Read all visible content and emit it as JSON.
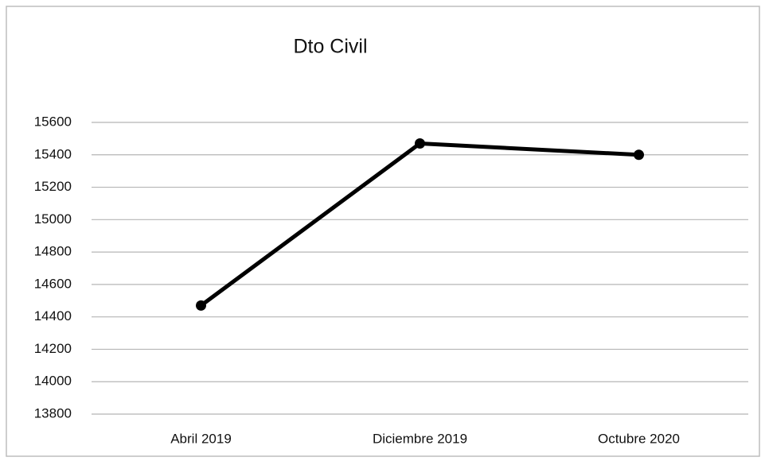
{
  "chart_data": {
    "type": "line",
    "title": "Dto Civil",
    "categories": [
      "Abril 2019",
      "Diciembre 2019",
      "Octubre 2020"
    ],
    "series": [
      {
        "name": "Dto Civil",
        "color": "#000000",
        "values": [
          14470,
          15470,
          15400
        ]
      }
    ],
    "ylim": [
      13800,
      15600
    ],
    "yticks": [
      13800,
      14000,
      14200,
      14400,
      14600,
      14800,
      15000,
      15200,
      15400,
      15600
    ],
    "grid": true
  }
}
